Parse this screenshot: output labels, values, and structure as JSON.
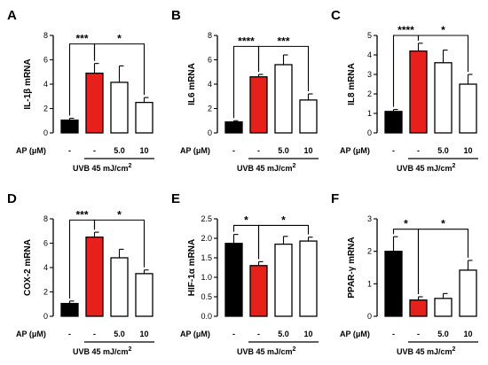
{
  "colors": {
    "black": "#000000",
    "red": "#e8201c",
    "white": "#ffffff"
  },
  "chart_data": [
    {
      "panel": "A",
      "type": "bar",
      "ylabel": "IL-1β mRNA",
      "ylim": [
        0,
        8
      ],
      "yticks": [
        0,
        2,
        4,
        6,
        8
      ],
      "values": [
        1.05,
        4.9,
        4.15,
        2.5
      ],
      "errors": [
        0.15,
        0.8,
        1.35,
        0.4
      ],
      "ap_labels": [
        "-",
        "-",
        "5.0",
        "10"
      ],
      "significance": [
        {
          "from": 0,
          "to": 1,
          "label": "***",
          "y": 7.3
        },
        {
          "from": 1,
          "to": 3,
          "label": "*",
          "y": 7.3
        }
      ]
    },
    {
      "panel": "B",
      "type": "bar",
      "ylabel": "IL6 mRNA",
      "ylim": [
        0,
        8
      ],
      "yticks": [
        0,
        2,
        4,
        6,
        8
      ],
      "values": [
        0.9,
        4.6,
        5.6,
        2.7
      ],
      "errors": [
        0.1,
        0.2,
        0.8,
        0.5
      ],
      "ap_labels": [
        "-",
        "-",
        "5.0",
        "10"
      ],
      "significance": [
        {
          "from": 0,
          "to": 1,
          "label": "****",
          "y": 7.1
        },
        {
          "from": 1,
          "to": 3,
          "label": "***",
          "y": 7.1
        }
      ]
    },
    {
      "panel": "C",
      "type": "bar",
      "ylabel": "IL8 mRNA",
      "ylim": [
        0,
        5
      ],
      "yticks": [
        0,
        1,
        2,
        3,
        4,
        5
      ],
      "values": [
        1.1,
        4.2,
        3.6,
        2.5
      ],
      "errors": [
        0.1,
        0.4,
        0.65,
        0.5
      ],
      "ap_labels": [
        "-",
        "-",
        "5.0",
        "10"
      ],
      "significance": [
        {
          "from": 0,
          "to": 1,
          "label": "****",
          "y": 5.0
        },
        {
          "from": 1,
          "to": 3,
          "label": "*",
          "y": 5.0
        }
      ]
    },
    {
      "panel": "D",
      "type": "bar",
      "ylabel": "COX-2 mRNA",
      "ylim": [
        0,
        8
      ],
      "yticks": [
        0,
        2,
        4,
        6,
        8
      ],
      "values": [
        1.05,
        6.5,
        4.8,
        3.5
      ],
      "errors": [
        0.2,
        0.4,
        0.7,
        0.3
      ],
      "ap_labels": [
        "-",
        "-",
        "5.0",
        "10"
      ],
      "significance": [
        {
          "from": 0,
          "to": 1,
          "label": "***",
          "y": 7.9
        },
        {
          "from": 1,
          "to": 3,
          "label": "*",
          "y": 7.9
        }
      ]
    },
    {
      "panel": "E",
      "type": "bar",
      "ylabel": "HIF-1α mRNA",
      "ylim": [
        0,
        2.5
      ],
      "yticks": [
        0.0,
        0.5,
        1.0,
        1.5,
        2.0,
        2.5
      ],
      "values": [
        1.87,
        1.3,
        1.85,
        1.93
      ],
      "errors": [
        0.23,
        0.1,
        0.2,
        0.1
      ],
      "ap_labels": [
        "-",
        "-",
        "5.0",
        "10"
      ],
      "significance": [
        {
          "from": 0,
          "to": 1,
          "label": "*",
          "y": 2.33
        },
        {
          "from": 1,
          "to": 3,
          "label": "*",
          "y": 2.33
        }
      ]
    },
    {
      "panel": "F",
      "type": "bar",
      "ylabel": "PPAR-γ mRNA",
      "ylim": [
        0,
        3
      ],
      "yticks": [
        0,
        1,
        2,
        3
      ],
      "values": [
        2.0,
        0.5,
        0.55,
        1.42
      ],
      "errors": [
        0.45,
        0.1,
        0.15,
        0.3
      ],
      "ap_labels": [
        "-",
        "-",
        "5.0",
        "10"
      ],
      "significance": [
        {
          "from": 0,
          "to": 1,
          "label": "*",
          "y": 2.68
        },
        {
          "from": 1,
          "to": 3,
          "label": "*",
          "y": 2.68
        }
      ]
    }
  ],
  "labels": {
    "ap_label": "AP (μM)",
    "uvb_label": "UVB 45 mJ/cm",
    "uvb_superscript": "2"
  }
}
